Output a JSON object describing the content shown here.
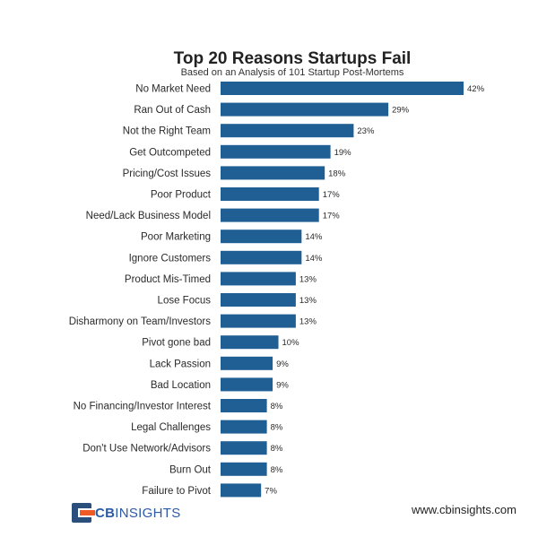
{
  "chart_data": {
    "type": "bar",
    "orientation": "horizontal",
    "title": "Top 20 Reasons Startups Fail",
    "subtitle": "Based on an Analysis of 101 Startup Post-Mortems",
    "categories": [
      "No Market Need",
      "Ran Out of Cash",
      "Not the Right Team",
      "Get Outcompeted",
      "Pricing/Cost Issues",
      "Poor Product",
      "Need/Lack Business Model",
      "Poor Marketing",
      "Ignore Customers",
      "Product Mis-Timed",
      "Lose Focus",
      "Disharmony on Team/Investors",
      "Pivot gone bad",
      "Lack Passion",
      "Bad Location",
      "No Financing/Investor Interest",
      "Legal Challenges",
      "Don't Use Network/Advisors",
      "Burn Out",
      "Failure to Pivot"
    ],
    "values": [
      42,
      29,
      23,
      19,
      18,
      17,
      17,
      14,
      14,
      13,
      13,
      13,
      10,
      9,
      9,
      8,
      8,
      8,
      8,
      7
    ],
    "value_labels": [
      "42%",
      "29%",
      "23%",
      "19%",
      "18%",
      "17%",
      "17%",
      "14%",
      "14%",
      "13%",
      "13%",
      "13%",
      "10%",
      "9%",
      "9%",
      "8%",
      "8%",
      "8%",
      "8%",
      "7%"
    ],
    "unit": "%",
    "xlim": [
      0,
      42
    ],
    "grid": false,
    "bar_color": "#1f5f93"
  },
  "footer": {
    "logo_text_bold": "CB",
    "logo_text": "INSIGHTS",
    "website": "www.cbinsights.com"
  },
  "colors": {
    "logo_dark": "#2b4f7c",
    "logo_orange": "#f05a24"
  }
}
